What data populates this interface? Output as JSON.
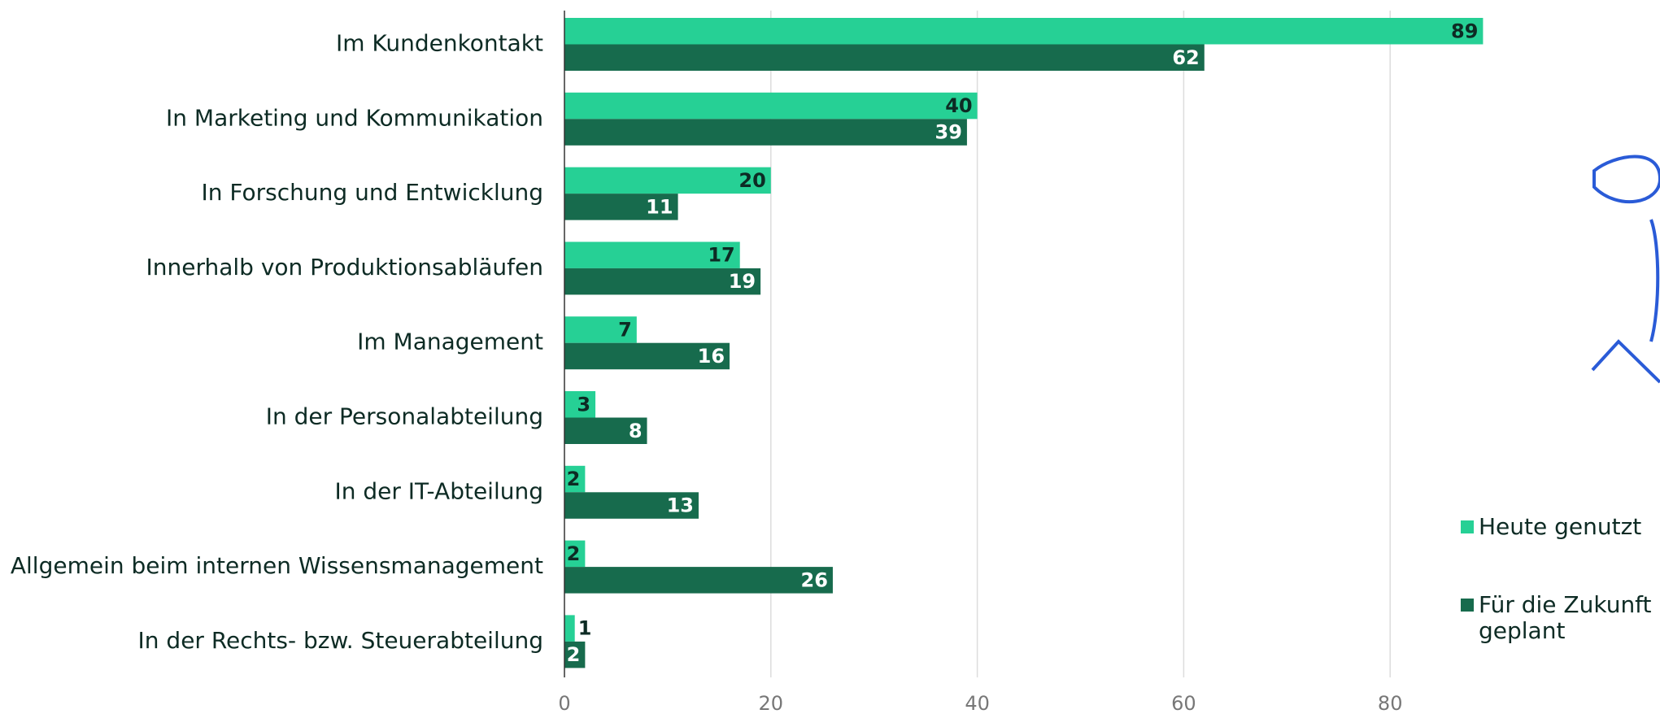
{
  "chart_data": {
    "type": "hbar",
    "categories": [
      "Im Kundenkontakt",
      "In Marketing und Kommunikation",
      "In Forschung und Entwicklung",
      "Innerhalb von Produktionsabläufen",
      "Im Management",
      "In der Personalabteilung",
      "In der IT-Abteilung",
      "Allgemein beim internen Wissensmanagement",
      "In der Rechts- bzw. Steuerabteilung"
    ],
    "series": [
      {
        "name": "Heute genutzt",
        "color": "#26d095",
        "label_color": "#0d2b24",
        "values": [
          89,
          40,
          20,
          17,
          7,
          3,
          2,
          2,
          1
        ]
      },
      {
        "name": "Für die Zukunft geplant",
        "color": "#176b4d",
        "label_color": "#ffffff",
        "values": [
          62,
          39,
          11,
          19,
          16,
          8,
          13,
          26,
          2
        ]
      }
    ],
    "xlim": [
      0,
      100
    ],
    "xticks": [
      0,
      20,
      40,
      60,
      80
    ],
    "grid": true
  }
}
